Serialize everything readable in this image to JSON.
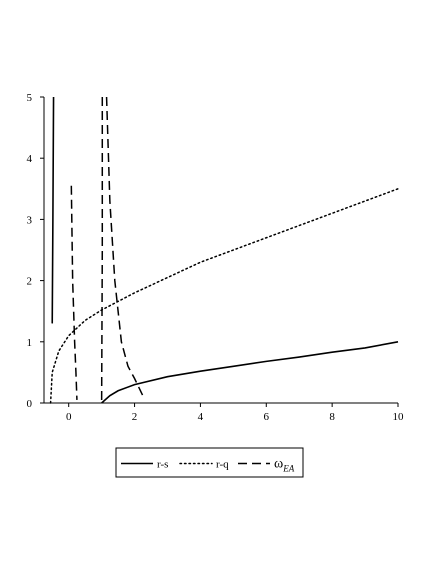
{
  "chart_data": {
    "type": "line",
    "title": "",
    "xlabel": "",
    "ylabel": "",
    "xlim": [
      -0.75,
      10
    ],
    "ylim": [
      0,
      5
    ],
    "xticks": [
      0,
      2,
      4,
      6,
      8,
      10
    ],
    "yticks": [
      0,
      1,
      2,
      3,
      4,
      5
    ],
    "grid": false,
    "legend_position": "bottom",
    "series": [
      {
        "name": "r-s",
        "style": "solid",
        "color": "#000000",
        "segments": [
          [
            [
              -0.46,
              5.0
            ],
            [
              -0.48,
              3.0
            ],
            [
              -0.5,
              1.3
            ]
          ],
          [
            [
              1.0,
              0.0
            ],
            [
              1.25,
              0.12
            ],
            [
              1.5,
              0.2
            ],
            [
              2.0,
              0.3
            ],
            [
              3.0,
              0.43
            ],
            [
              4.0,
              0.52
            ],
            [
              5.0,
              0.6
            ],
            [
              6.0,
              0.68
            ],
            [
              7.0,
              0.75
            ],
            [
              8.0,
              0.83
            ],
            [
              9.0,
              0.9
            ],
            [
              10.0,
              1.0
            ]
          ]
        ]
      },
      {
        "name": "r-q",
        "style": "dotted",
        "color": "#000000",
        "segments": [
          [
            [
              -0.55,
              0.0
            ],
            [
              -0.5,
              0.5
            ],
            [
              -0.3,
              0.85
            ],
            [
              0.0,
              1.1
            ],
            [
              0.5,
              1.35
            ],
            [
              1.0,
              1.52
            ],
            [
              2.0,
              1.8
            ],
            [
              3.0,
              2.05
            ],
            [
              4.0,
              2.3
            ],
            [
              5.0,
              2.5
            ],
            [
              6.0,
              2.7
            ],
            [
              7.0,
              2.9
            ],
            [
              8.0,
              3.1
            ],
            [
              9.0,
              3.3
            ],
            [
              10.0,
              3.5
            ]
          ]
        ]
      },
      {
        "name": "ω",
        "name_subscript": "EA",
        "style": "dashed",
        "color": "#000000",
        "segments": [
          [
            [
              0.08,
              3.55
            ],
            [
              0.12,
              2.0
            ],
            [
              0.18,
              1.0
            ],
            [
              0.22,
              0.5
            ],
            [
              0.25,
              0.05
            ]
          ],
          [
            [
              1.15,
              5.0
            ],
            [
              1.25,
              3.3
            ],
            [
              1.4,
              2.0
            ],
            [
              1.6,
              1.0
            ],
            [
              1.8,
              0.6
            ],
            [
              2.0,
              0.4
            ],
            [
              2.25,
              0.12
            ]
          ],
          [
            [
              1.02,
              5.0
            ],
            [
              1.02,
              2.5
            ],
            [
              1.0,
              0.0
            ]
          ]
        ]
      }
    ]
  }
}
